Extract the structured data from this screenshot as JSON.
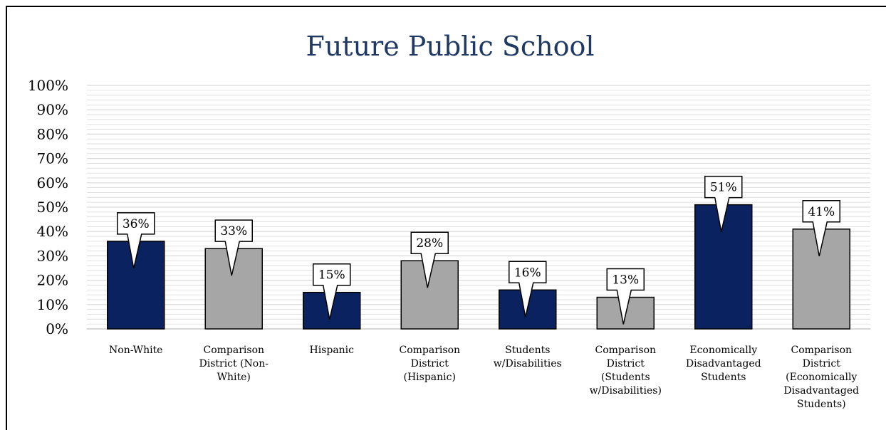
{
  "chart_data": {
    "type": "bar",
    "title": "Future Public School",
    "xlabel": "",
    "ylabel": "",
    "ylim": [
      0,
      100
    ],
    "y_ticks": [
      "0%",
      "10%",
      "20%",
      "30%",
      "40%",
      "50%",
      "60%",
      "70%",
      "80%",
      "90%",
      "100%"
    ],
    "grid": true,
    "legend": "none",
    "categories": [
      [
        "Non-White"
      ],
      [
        "Comparison",
        "District (Non-",
        "White)"
      ],
      [
        "Hispanic"
      ],
      [
        "Comparison",
        "District",
        "(Hispanic)"
      ],
      [
        "Students",
        "w/Disabilities"
      ],
      [
        "Comparison",
        "District",
        "(Students",
        "w/Disabilities)"
      ],
      [
        "Economically",
        "Disadvantaged",
        "Students"
      ],
      [
        "Comparison",
        "District",
        "(Economically",
        "Disadvantaged",
        "Students)"
      ]
    ],
    "values": [
      36,
      33,
      15,
      28,
      16,
      13,
      51,
      41
    ],
    "data_labels": [
      "36%",
      "33%",
      "15%",
      "28%",
      "16%",
      "13%",
      "51%",
      "41%"
    ],
    "bar_colors": [
      "#0b2260",
      "#a6a6a6",
      "#0b2260",
      "#a6a6a6",
      "#0b2260",
      "#a6a6a6",
      "#0b2260",
      "#a6a6a6"
    ],
    "title_color": "#1f3864",
    "grid_color": "#d9d9d9"
  }
}
